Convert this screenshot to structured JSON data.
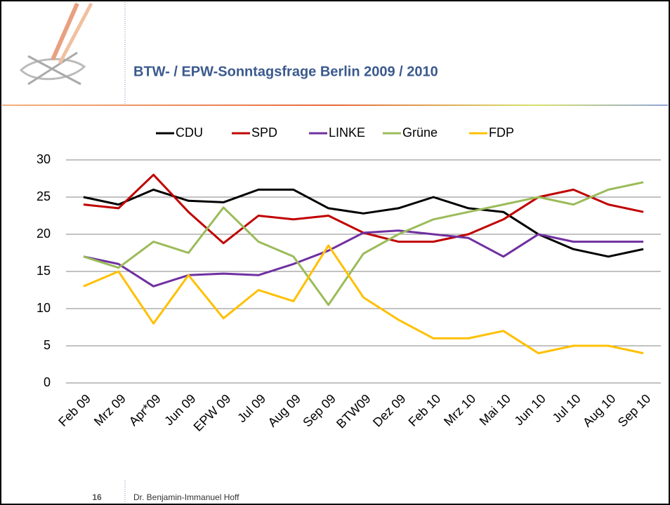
{
  "slide": {
    "page_number": 16,
    "author": "Dr. Benjamin-Immanuel Hoff"
  },
  "chart_data": {
    "type": "line",
    "title": "BTW- / EPW-Sonntagsfrage Berlin 2009 / 2010",
    "categories": [
      "Feb 09",
      "Mrz 09",
      "Apr*09",
      "Jun 09",
      "EPW 09",
      "Jul 09",
      "Aug 09",
      "Sep 09",
      "BTW09",
      "Dez 09",
      "Feb 10",
      "Mrz 10",
      "Mai 10",
      "Jun 10",
      "Jul 10",
      "Aug 10",
      "Sep 10"
    ],
    "series": [
      {
        "name": "CDU",
        "color": "#000000",
        "values": [
          25,
          24,
          26,
          24.5,
          24.3,
          26,
          26,
          23.5,
          22.8,
          23.5,
          25,
          23.5,
          23,
          20,
          18,
          17,
          18
        ]
      },
      {
        "name": "SPD",
        "color": "#c00000",
        "values": [
          24,
          23.5,
          28,
          23,
          18.8,
          22.5,
          22,
          22.5,
          20.2,
          19,
          19,
          20,
          22,
          25,
          26,
          24,
          23
        ]
      },
      {
        "name": "LINKE",
        "color": "#7030a0",
        "values": [
          17,
          16,
          13,
          14.5,
          14.7,
          14.5,
          16,
          17.8,
          20.2,
          20.5,
          20,
          19.5,
          17,
          20,
          19,
          19,
          19
        ]
      },
      {
        "name": "Grüne",
        "color": "#9bbb59",
        "values": [
          17,
          15.5,
          19,
          17.5,
          23.6,
          19,
          17,
          10.5,
          17.4,
          20,
          22,
          23,
          24,
          25,
          24,
          26,
          27
        ]
      },
      {
        "name": "FDP",
        "color": "#ffc000",
        "values": [
          13,
          15,
          8,
          14.5,
          8.7,
          12.5,
          11,
          18.5,
          11.5,
          8.5,
          6,
          6,
          7,
          4,
          5,
          5,
          4
        ]
      }
    ],
    "ylim": [
      0,
      30
    ],
    "yticks": [
      0,
      5,
      10,
      15,
      20,
      25,
      30
    ],
    "grid": true,
    "legend": "top"
  }
}
